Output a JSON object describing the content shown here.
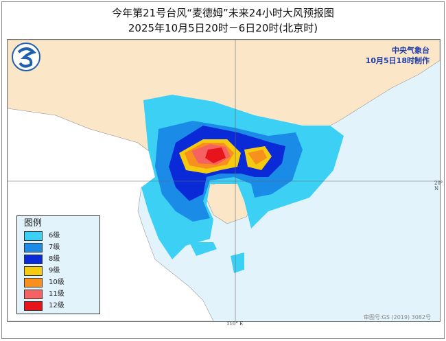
{
  "title": "今年第21号台风“麦德姆”未来24小时大风预报图",
  "subtitle": "2025年10月5日20时－6日20时(北京时)",
  "issuer": {
    "name": "中央气象台",
    "made_time": "10月5日18时制作"
  },
  "axis_labels": {
    "lat": "20° N",
    "lon": "110° E"
  },
  "legend": {
    "title": "图例",
    "items": [
      {
        "label": "6级",
        "color": "#3cd0f5"
      },
      {
        "label": "7级",
        "color": "#1a8ce8"
      },
      {
        "label": "8级",
        "color": "#0a2ad8"
      },
      {
        "label": "9级",
        "color": "#f5cb10"
      },
      {
        "label": "10级",
        "color": "#f7901e"
      },
      {
        "label": "11级",
        "color": "#f66262"
      },
      {
        "label": "12级",
        "color": "#e8141c"
      }
    ]
  },
  "approval_number": "审图号:GS (2019) 3082号",
  "colors": {
    "land_china": "#fbe6c8",
    "land_other": "#ffffff",
    "sea": "#e3f3fb"
  }
}
